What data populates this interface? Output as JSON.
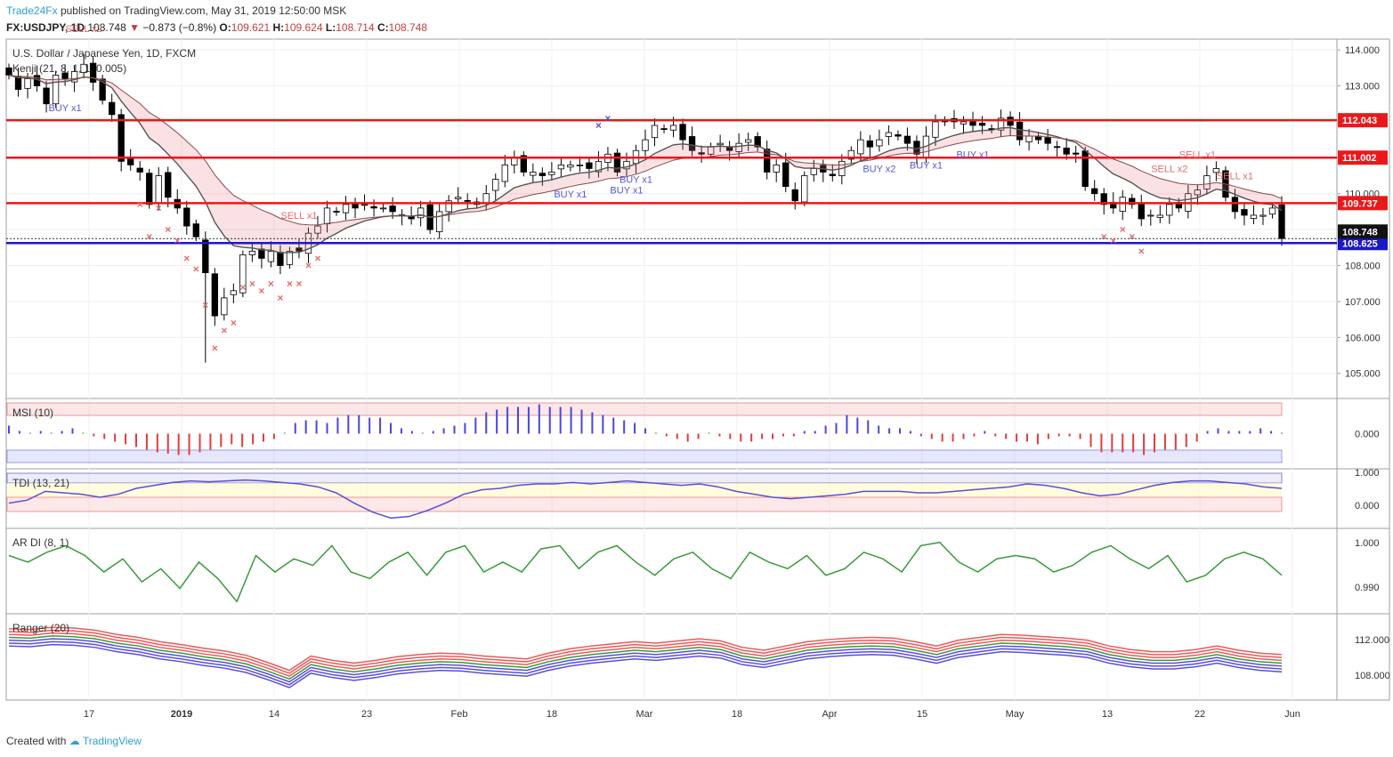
{
  "header": {
    "author": "Trade24Fx",
    "text": "published on TradingView.com, May 31, 2019 12:50:00 MSK"
  },
  "symbol_line": {
    "symbol": "FX:USDJPY, 1D",
    "price": "108.748",
    "change": "−0.873 (−0.8%)",
    "open_label": "O:",
    "open": "109.621",
    "high_label": "H:",
    "high": "109.624",
    "low_label": "L:",
    "low": "108.714",
    "close_label": "C:",
    "close": "108.748"
  },
  "footer": {
    "created_with": "Created with",
    "brand": "TradingView"
  },
  "colors": {
    "up_candle": "#ffffff",
    "down_candle": "#000000",
    "resistance": "#e8191b",
    "support": "#1b18c7",
    "sell_marker": "#e26b6b",
    "buy_marker": "#5557d8"
  },
  "chart_data": [
    {
      "type": "candlestick",
      "title": "U.S. Dollar / Japanese Yen, 1D, FXCM",
      "indicator_label": "Kenji (21, 8, 1, 1, 0.005)",
      "y_axis": {
        "range": [
          104.3,
          114.3
        ],
        "ticks": [
          "114.000",
          "113.000",
          "112.000",
          "111.000",
          "110.000",
          "109.000",
          "108.000",
          "107.000",
          "106.000",
          "105.000"
        ]
      },
      "x_ticks": [
        "17",
        "2019",
        "14",
        "23",
        "Feb",
        "18",
        "Mar",
        "18",
        "Apr",
        "15",
        "May",
        "13",
        "22",
        "Jun"
      ],
      "horizontal_levels": [
        {
          "value": 112.043,
          "label": "112.043",
          "color": "#e8191b"
        },
        {
          "value": 111.002,
          "label": "111.002",
          "color": "#e8191b"
        },
        {
          "value": 109.737,
          "label": "109.737",
          "color": "#e8191b"
        },
        {
          "value": 108.625,
          "label": "108.625",
          "color": "#1b18c7"
        }
      ],
      "last_price": {
        "value": 108.748,
        "label": "108.748"
      },
      "signal_labels": [
        "SELL x2",
        "BUY x1",
        "SELL x1",
        "BUY x1",
        "BUY x1",
        "BUY x1",
        "BUY x2",
        "BUY x1",
        "BUY x1",
        "SELL x1",
        "SELL x2",
        "SELL x1"
      ],
      "closes": [
        113.3,
        112.9,
        113.2,
        113.0,
        112.5,
        113.3,
        113.2,
        113.4,
        113.6,
        113.1,
        112.6,
        112.2,
        110.9,
        110.8,
        110.6,
        109.7,
        110.5,
        109.9,
        109.6,
        109.1,
        108.8,
        107.8,
        106.6,
        107.1,
        107.3,
        108.3,
        108.4,
        108.2,
        108.4,
        108.0,
        108.4,
        108.4,
        108.9,
        109.1,
        109.6,
        109.5,
        109.7,
        109.6,
        109.7,
        109.6,
        109.6,
        109.5,
        109.4,
        109.3,
        109.6,
        109.0,
        109.5,
        109.8,
        109.9,
        109.8,
        109.7,
        110.0,
        110.4,
        110.8,
        111.0,
        110.6,
        110.6,
        110.5,
        110.6,
        110.8,
        110.8,
        110.8,
        110.7,
        110.9,
        111.1,
        110.6,
        110.9,
        111.2,
        111.5,
        111.9,
        111.8,
        111.9,
        111.5,
        111.2,
        111.1,
        111.3,
        111.4,
        111.2,
        111.4,
        111.5,
        111.3,
        110.6,
        110.8,
        110.2,
        109.8,
        110.5,
        110.7,
        110.6,
        110.5,
        110.9,
        111.2,
        111.5,
        111.3,
        111.5,
        111.7,
        111.6,
        111.4,
        111.1,
        111.6,
        112.0,
        112.0,
        112.0,
        112.0,
        111.9,
        111.9,
        111.8,
        112.1,
        111.9,
        111.5,
        111.6,
        111.5,
        111.4,
        111.3,
        111.1,
        111.1,
        110.2,
        110.0,
        109.7,
        109.6,
        109.9,
        109.7,
        109.3,
        109.4,
        109.4,
        109.7,
        109.6,
        110.0,
        110.1,
        110.5,
        110.7,
        109.9,
        109.5,
        109.4,
        109.4,
        109.4,
        109.6,
        108.75
      ]
    },
    {
      "type": "histogram",
      "title": "MSI (10)",
      "y_tick": "0.000",
      "values": [
        0.3,
        0.1,
        0,
        0.1,
        0,
        0.1,
        0.2,
        0,
        -0.1,
        -0.2,
        -0.3,
        -0.4,
        -0.5,
        -0.6,
        -0.7,
        -0.75,
        -0.8,
        -0.8,
        -0.7,
        -0.6,
        -0.5,
        -0.4,
        -0.5,
        -0.4,
        -0.3,
        -0.2,
        0,
        0.4,
        0.5,
        0.5,
        0.4,
        0.6,
        0.7,
        0.7,
        0.6,
        0.6,
        0.4,
        0.2,
        0.1,
        0,
        0.1,
        0.2,
        0.3,
        0.4,
        0.6,
        0.8,
        0.9,
        1.0,
        1.0,
        1.0,
        1.1,
        1.0,
        1.0,
        1.0,
        0.9,
        0.8,
        0.7,
        0.6,
        0.5,
        0.4,
        0.2,
        0,
        -0.1,
        -0.2,
        -0.3,
        -0.2,
        0,
        -0.1,
        -0.2,
        -0.3,
        -0.3,
        -0.2,
        -0.2,
        -0.1,
        -0.1,
        0.1,
        0.1,
        0.3,
        0.4,
        0.7,
        0.6,
        0.5,
        0.3,
        0.2,
        0.2,
        0.1,
        -0.1,
        -0.2,
        -0.3,
        -0.3,
        -0.2,
        -0.1,
        0.1,
        -0.1,
        -0.2,
        -0.3,
        -0.3,
        -0.4,
        -0.2,
        -0.1,
        -0.1,
        -0.2,
        -0.5,
        -0.7,
        -0.7,
        -0.7,
        -0.7,
        -0.8,
        -0.7,
        -0.6,
        -0.6,
        -0.5,
        -0.3,
        0.1,
        0.2,
        0.1,
        0.1,
        0.1,
        0.2,
        0.1,
        0
      ]
    },
    {
      "type": "line",
      "title": "TDI (13, 21)",
      "y_ticks": [
        "1.000",
        "0.000"
      ],
      "values": [
        0.2,
        0.3,
        0.6,
        0.55,
        0.5,
        0.4,
        0.5,
        0.7,
        0.8,
        0.9,
        0.95,
        0.92,
        0.95,
        0.98,
        0.95,
        0.9,
        0.85,
        0.75,
        0.55,
        0.2,
        -0.1,
        -0.3,
        -0.25,
        -0.05,
        0.2,
        0.5,
        0.65,
        0.7,
        0.8,
        0.85,
        0.85,
        0.9,
        0.85,
        0.9,
        0.95,
        0.9,
        0.85,
        0.8,
        0.85,
        0.75,
        0.6,
        0.5,
        0.4,
        0.35,
        0.4,
        0.45,
        0.5,
        0.6,
        0.6,
        0.6,
        0.55,
        0.55,
        0.6,
        0.65,
        0.7,
        0.75,
        0.85,
        0.8,
        0.7,
        0.55,
        0.45,
        0.5,
        0.65,
        0.8,
        0.9,
        0.95,
        0.95,
        0.9,
        0.85,
        0.75,
        0.7
      ]
    },
    {
      "type": "line",
      "title": "AR DI (8, 1)",
      "y_ticks": [
        "1.000",
        "0.990"
      ],
      "values": [
        0.998,
        0.996,
        0.999,
        1.001,
        0.998,
        0.993,
        0.997,
        0.99,
        0.994,
        0.988,
        0.996,
        0.991,
        0.984,
        0.998,
        0.993,
        0.997,
        0.995,
        1.001,
        0.993,
        0.991,
        0.996,
        0.999,
        0.992,
        0.999,
        1.001,
        0.993,
        0.996,
        0.993,
        1.0,
        1.001,
        0.994,
        0.999,
        1.001,
        0.996,
        0.992,
        0.997,
        0.999,
        0.994,
        0.991,
        0.999,
        0.996,
        0.994,
        0.998,
        0.992,
        0.994,
        0.999,
        0.997,
        0.993,
        1.001,
        1.002,
        0.996,
        0.993,
        0.997,
        0.998,
        0.997,
        0.993,
        0.995,
        0.999,
        1.001,
        0.997,
        0.994,
        0.998,
        0.99,
        0.992,
        0.997,
        0.999,
        0.997,
        0.992
      ]
    },
    {
      "type": "line",
      "title": "Ranger (20)",
      "y_ticks": [
        "112.000",
        "108.000"
      ],
      "values": [
        113.0,
        112.9,
        113.2,
        113.1,
        112.8,
        112.2,
        111.8,
        111.2,
        110.8,
        110.3,
        109.9,
        109.3,
        108.3,
        107.2,
        109.2,
        108.6,
        108.2,
        108.6,
        109.1,
        109.4,
        109.6,
        109.5,
        109.2,
        109.0,
        108.8,
        109.6,
        110.2,
        110.6,
        110.9,
        111.2,
        111.0,
        111.3,
        111.6,
        111.3,
        110.4,
        110.0,
        110.6,
        111.2,
        111.5,
        111.7,
        111.8,
        111.7,
        111.2,
        110.6,
        111.4,
        111.8,
        112.2,
        112.1,
        111.9,
        111.7,
        111.4,
        110.6,
        110.1,
        109.8,
        109.8,
        110.1,
        110.6,
        110.0,
        109.6,
        109.4
      ]
    }
  ]
}
